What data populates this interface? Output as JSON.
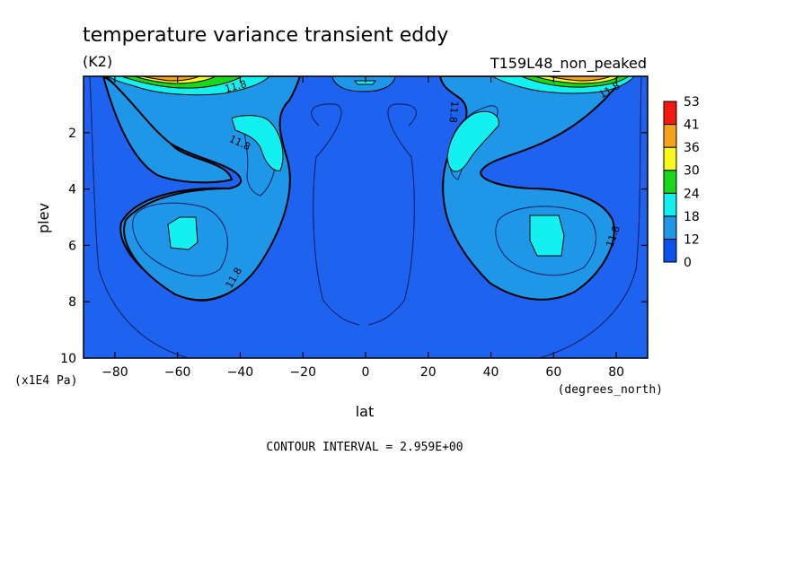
{
  "chart_data": {
    "type": "heatmap",
    "title": "temperature variance transient eddy",
    "units": "(K2)",
    "run_label": "T159L48_non_peaked",
    "xlabel": "lat",
    "x_units": "(degrees_north)",
    "ylabel": "plev",
    "y_units": "(x1E4 Pa)",
    "xlim": [
      -90,
      90
    ],
    "ylim": [
      10,
      0
    ],
    "x_ticks": [
      -80,
      -60,
      -40,
      -20,
      0,
      20,
      40,
      60,
      80
    ],
    "y_ticks": [
      2,
      4,
      6,
      8,
      10
    ],
    "colorbar": {
      "levels": [
        0,
        12,
        18,
        24,
        30,
        36,
        41,
        53
      ],
      "labels": [
        "0",
        "12",
        "18",
        "24",
        "30",
        "36",
        "41",
        "53"
      ],
      "colors": [
        "#0a52f0",
        "#1f97e8",
        "#12f0f0",
        "#18d818",
        "#f8f81a",
        "#f8a018",
        "#f41810"
      ]
    },
    "contour_label": "11.8",
    "contour_interval_text": "CONTOUR INTERVAL = 2.959E+00",
    "background_color": "#1e62f0"
  }
}
